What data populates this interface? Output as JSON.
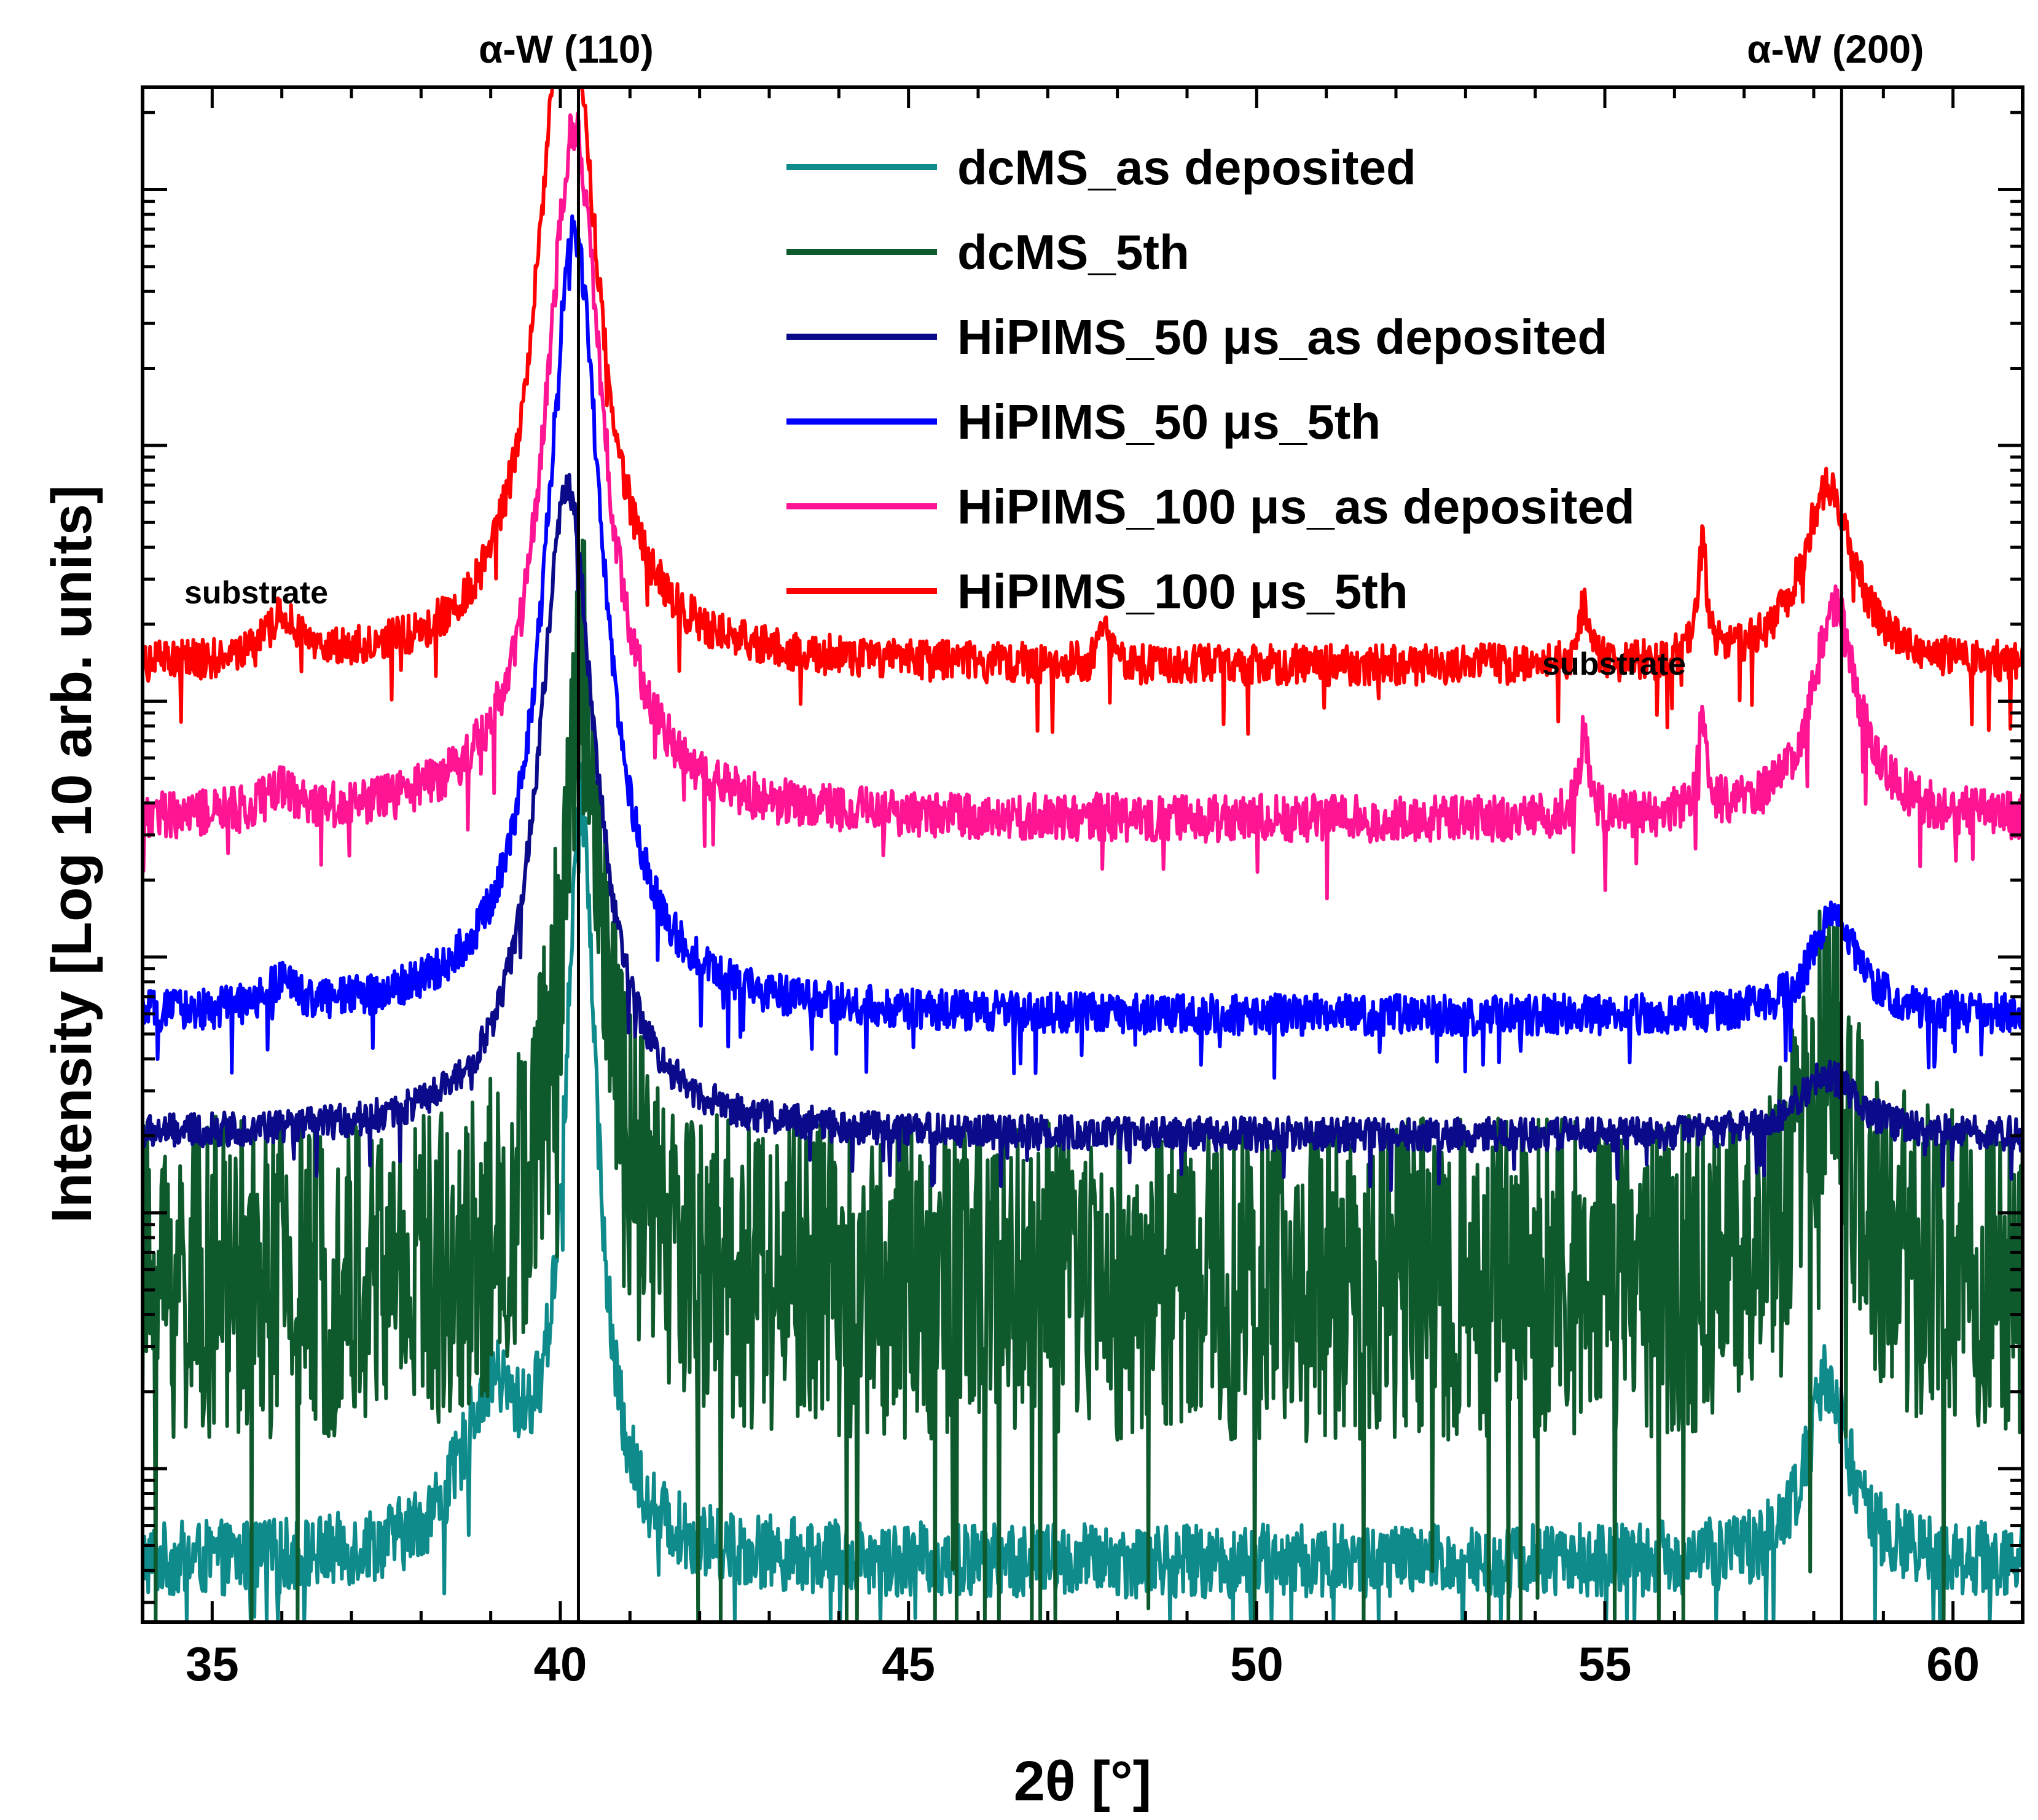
{
  "chart_data": {
    "type": "line",
    "title": "",
    "xlabel": "2θ [°]",
    "ylabel": "Intensity [Log 10 arb. units]",
    "xlim": [
      34,
      61
    ],
    "ylim": [
      0,
      9
    ],
    "xticks": [
      35,
      40,
      45,
      50,
      55,
      60
    ],
    "y_scale": "log10, arbitrary offsets; no numeric tick labels",
    "reference_lines": [
      {
        "x": 40.26,
        "label": "α-W (110)"
      },
      {
        "x": 58.4,
        "label": "α-W (200)"
      }
    ],
    "annotations": [
      {
        "text": "substrate",
        "x": 36,
        "note": "left substrate peak"
      },
      {
        "text": "substrate",
        "x": 56.0,
        "note": "right substrate peaks"
      }
    ],
    "legend_position": "top-center",
    "series": [
      {
        "name": "dcMS_as deposited",
        "color": "#0f8b8b",
        "baseline": 0.35,
        "noise": 0.22,
        "peaks": [
          {
            "x": 40.3,
            "h": 4.35,
            "w": 0.28
          },
          {
            "x": 39.0,
            "h": 0.9,
            "w": 0.5
          },
          {
            "x": 58.2,
            "h": 1.1,
            "w": 0.35
          }
        ]
      },
      {
        "name": "dcMS_5th",
        "color": "#0e5a2c",
        "baseline": 2.0,
        "noise": 0.95,
        "peaks": [
          {
            "x": 40.3,
            "h": 3.6,
            "w": 0.35
          },
          {
            "x": 58.2,
            "h": 1.4,
            "w": 0.4
          }
        ]
      },
      {
        "name": "HiPIMS_50 μs_as deposited",
        "color": "#0a0a8a",
        "baseline": 2.85,
        "noise": 0.1,
        "peaks": [
          {
            "x": 40.1,
            "h": 3.8,
            "w": 0.5
          },
          {
            "x": 58.2,
            "h": 0.35,
            "w": 0.5
          }
        ]
      },
      {
        "name": "HiPIMS_50 μs_5th",
        "color": "#0000ff",
        "baseline": 3.55,
        "noise": 0.12,
        "peaks": [
          {
            "x": 40.2,
            "h": 4.6,
            "w": 0.5
          },
          {
            "x": 36.0,
            "h": 0.15,
            "w": 0.25
          },
          {
            "x": 58.3,
            "h": 0.6,
            "w": 0.4
          }
        ]
      },
      {
        "name": "HiPIMS_100 μs_as deposited",
        "color": "#ff1493",
        "baseline": 4.7,
        "noise": 0.14,
        "peaks": [
          {
            "x": 40.2,
            "h": 4.05,
            "w": 0.5
          },
          {
            "x": 36.0,
            "h": 0.15,
            "w": 0.25
          },
          {
            "x": 58.3,
            "h": 1.25,
            "w": 0.4
          },
          {
            "x": 56.4,
            "h": 0.6,
            "w": 0.08
          },
          {
            "x": 54.7,
            "h": 0.5,
            "w": 0.08
          }
        ]
      },
      {
        "name": "HiPIMS_100 μs_5th",
        "color": "#ff0000",
        "baseline": 5.6,
        "noise": 0.12,
        "peaks": [
          {
            "x": 40.1,
            "h": 4.1,
            "w": 0.5
          },
          {
            "x": 36.0,
            "h": 0.25,
            "w": 0.25
          },
          {
            "x": 58.2,
            "h": 1.05,
            "w": 0.45
          },
          {
            "x": 56.4,
            "h": 0.65,
            "w": 0.08
          },
          {
            "x": 54.7,
            "h": 0.35,
            "w": 0.08
          },
          {
            "x": 47.8,
            "h": 0.2,
            "w": 0.08
          }
        ]
      }
    ]
  }
}
